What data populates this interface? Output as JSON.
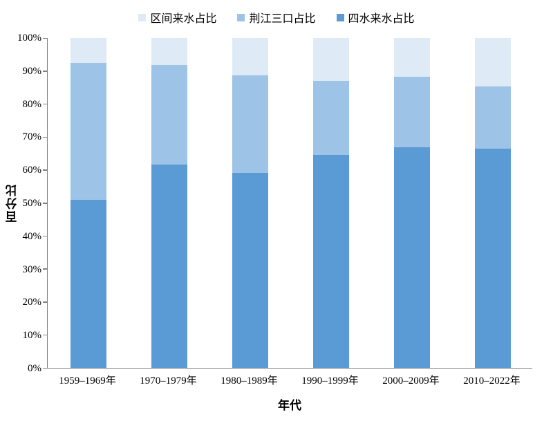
{
  "chart_data": {
    "type": "bar",
    "variant": "stacked-percent",
    "title": "",
    "xlabel": "年代",
    "ylabel": "百分比",
    "ylim": [
      0,
      100
    ],
    "ytick_step": 10,
    "ytick_labels": [
      "0%",
      "10%",
      "20%",
      "30%",
      "40%",
      "50%",
      "60%",
      "70%",
      "80%",
      "90%",
      "100%"
    ],
    "grid": false,
    "legend_position": "top-center",
    "axis_color": "#808080",
    "categories": [
      "1959–1969年",
      "1970–1979年",
      "1980–1989年",
      "1990–1999年",
      "2000–2009年",
      "2010–2022年"
    ],
    "series": [
      {
        "name": "四水来水占比",
        "color": "#5B9BD5",
        "values": [
          51.0,
          61.7,
          59.2,
          64.6,
          66.9,
          66.5
        ]
      },
      {
        "name": "荆江三口占比",
        "color": "#9DC3E6",
        "values": [
          41.5,
          30.2,
          29.5,
          22.4,
          21.4,
          18.8
        ]
      },
      {
        "name": "区间来水占比",
        "color": "#DEEBF7",
        "values": [
          7.5,
          8.1,
          11.3,
          13.0,
          11.7,
          14.7
        ]
      }
    ],
    "legend": [
      {
        "name": "区间来水占比",
        "color": "#DEEBF7"
      },
      {
        "name": "荆江三口占比",
        "color": "#9DC3E6"
      },
      {
        "name": "四水来水占比",
        "color": "#5B9BD5"
      }
    ]
  }
}
